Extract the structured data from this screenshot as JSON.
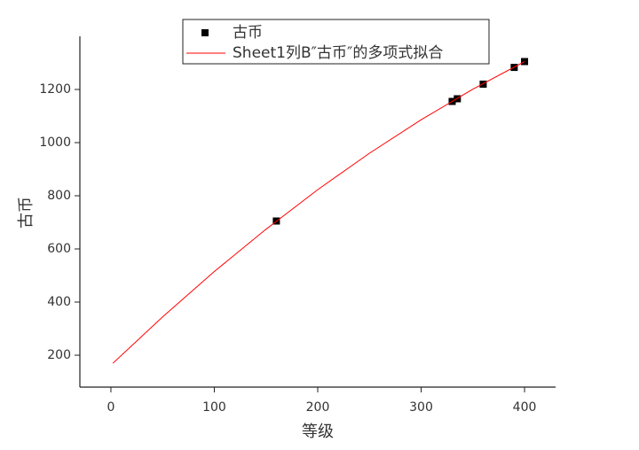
{
  "chart_data": {
    "type": "scatter",
    "xlabel": "等级",
    "ylabel": "古币",
    "xlim": [
      -30,
      430
    ],
    "ylim": [
      80,
      1400
    ],
    "xticks": [
      0,
      100,
      200,
      300,
      400
    ],
    "yticks": [
      200,
      400,
      600,
      800,
      1000,
      1200
    ],
    "legend": "top",
    "series": [
      {
        "name": "古币",
        "mode": "markers",
        "color": "#000000",
        "x": [
          160,
          330,
          335,
          360,
          390,
          400
        ],
        "values": [
          705,
          1155,
          1165,
          1220,
          1283,
          1305
        ]
      },
      {
        "name": "Sheet1列B″古币″的多项式拟合",
        "mode": "line",
        "color": "#ff0000",
        "x": [
          2,
          50,
          100,
          150,
          200,
          250,
          300,
          350,
          400
        ],
        "values": [
          170,
          344,
          515,
          674,
          823,
          960,
          1086,
          1201,
          1305
        ]
      }
    ]
  }
}
